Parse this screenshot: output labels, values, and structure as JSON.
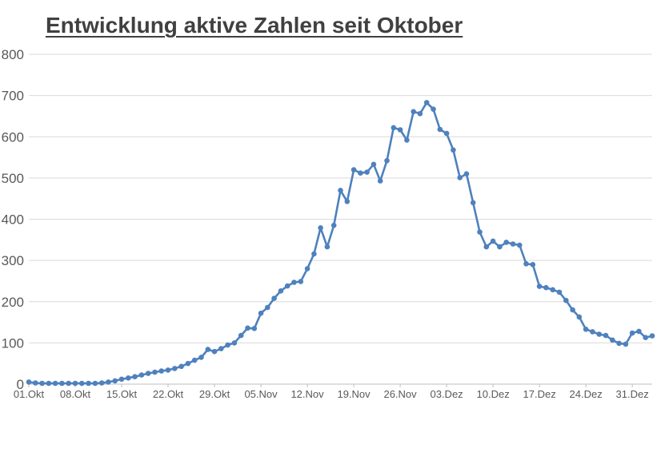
{
  "title": "Entwicklung aktive Zahlen seit Oktober",
  "colors": {
    "series": "#4F81BD",
    "gridline": "#d9d9d9",
    "axis_line": "#bfbfbf",
    "tick_mark": "#bfbfbf",
    "axis_label": "#595959",
    "title_text": "#404040",
    "background": "#ffffff"
  },
  "chart_data": {
    "type": "line",
    "title": "Entwicklung aktive Zahlen seit Oktober",
    "xlabel": "",
    "ylabel": "",
    "ylim": [
      0,
      800
    ],
    "y_ticks": [
      0,
      100,
      200,
      300,
      400,
      500,
      600,
      700,
      800
    ],
    "x_tick_labels": [
      "01.Okt",
      "08.Okt",
      "15.Okt",
      "22.Okt",
      "29.Okt",
      "05.Nov",
      "12.Nov",
      "19.Nov",
      "26.Nov",
      "03.Dez",
      "10.Dez",
      "17.Dez",
      "24.Dez",
      "31.Dez"
    ],
    "x_tick_interval_points": 7,
    "grid": "horizontal",
    "legend": "none",
    "marker": "circle",
    "series": [
      {
        "color": "#4F81BD",
        "values": [
          5,
          3,
          2,
          2,
          2,
          2,
          2,
          2,
          2,
          2,
          2,
          3,
          5,
          8,
          12,
          15,
          18,
          22,
          26,
          29,
          32,
          34,
          38,
          43,
          50,
          58,
          65,
          84,
          79,
          86,
          95,
          100,
          118,
          136,
          135,
          172,
          186,
          208,
          226,
          238,
          247,
          249,
          280,
          316,
          379,
          333,
          385,
          470,
          443,
          520,
          512,
          514,
          533,
          493,
          542,
          622,
          617,
          592,
          661,
          656,
          683,
          667,
          618,
          608,
          568,
          501,
          510,
          440,
          369,
          333,
          347,
          333,
          344,
          340,
          337,
          292,
          290,
          237,
          234,
          229,
          223,
          203,
          180,
          163,
          133,
          127,
          121,
          118,
          107,
          99,
          97,
          124,
          128,
          113,
          117
        ]
      }
    ]
  }
}
